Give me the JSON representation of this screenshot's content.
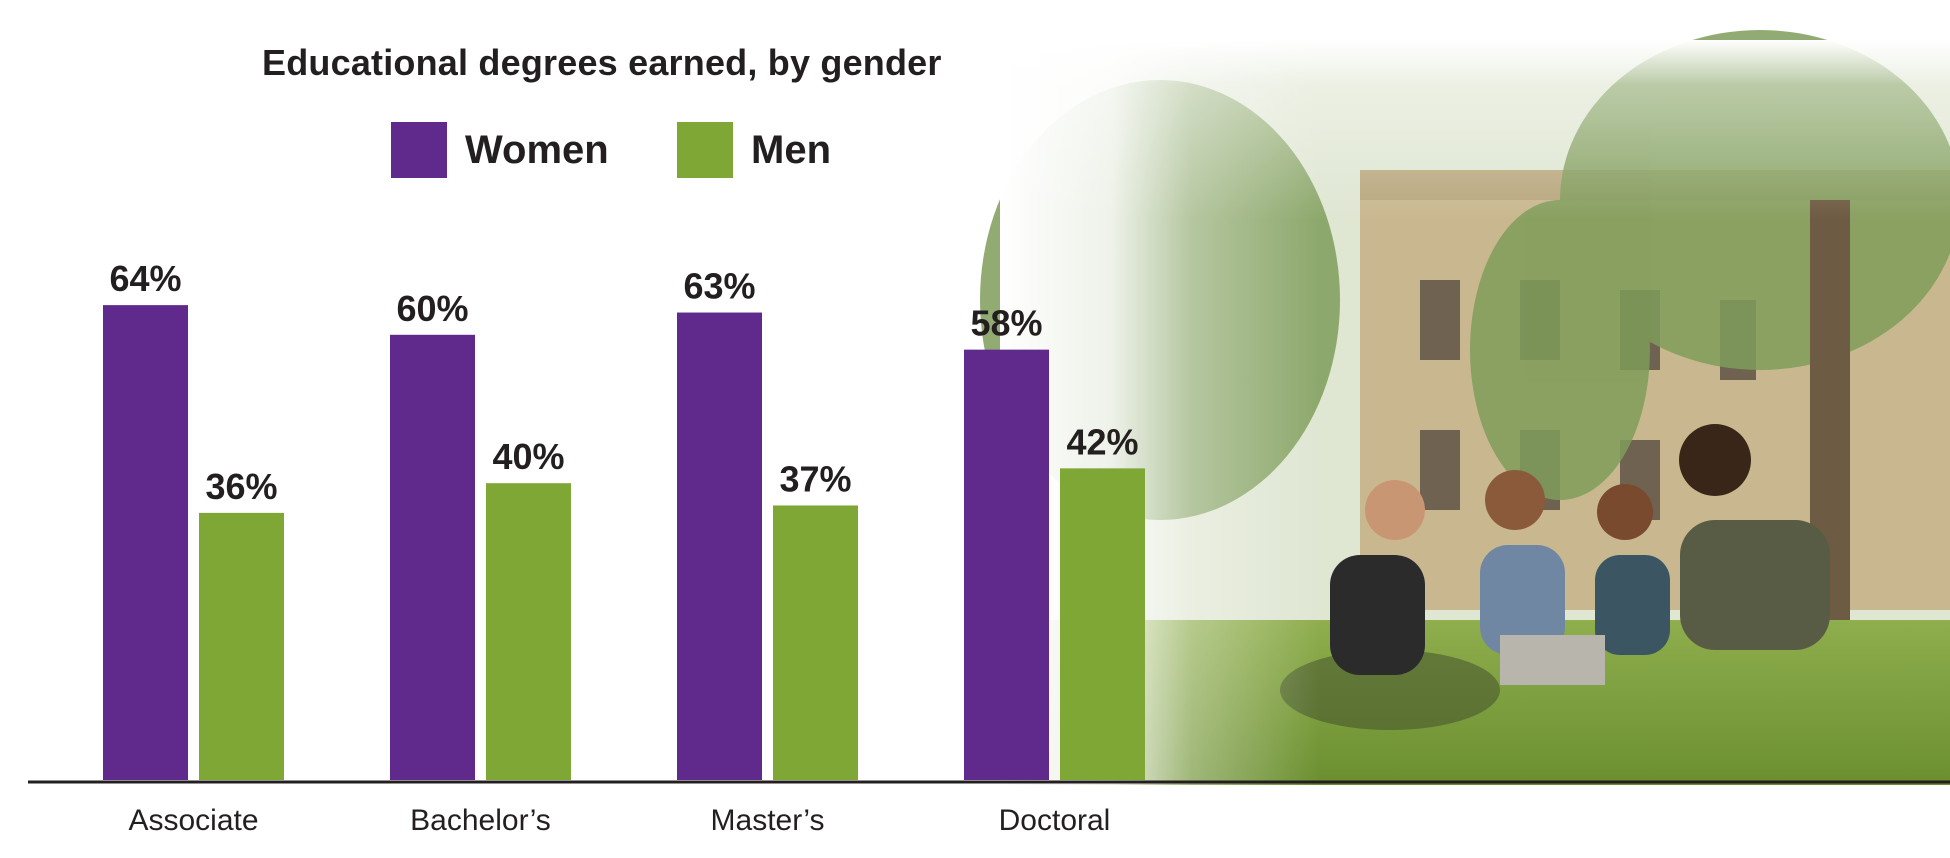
{
  "chart_data": {
    "type": "bar",
    "title": "Educational degrees earned, by gender",
    "categories": [
      "Associate",
      "Bachelor’s",
      "Master’s",
      "Doctoral"
    ],
    "series": [
      {
        "name": "Women",
        "color": "#5f2a8c",
        "values": [
          64,
          60,
          63,
          58
        ]
      },
      {
        "name": "Men",
        "color": "#7fa736",
        "values": [
          36,
          40,
          37,
          42
        ]
      }
    ],
    "value_suffix": "%",
    "ylim": [
      0,
      70
    ],
    "grid": false,
    "legend_placement": "top"
  }
}
